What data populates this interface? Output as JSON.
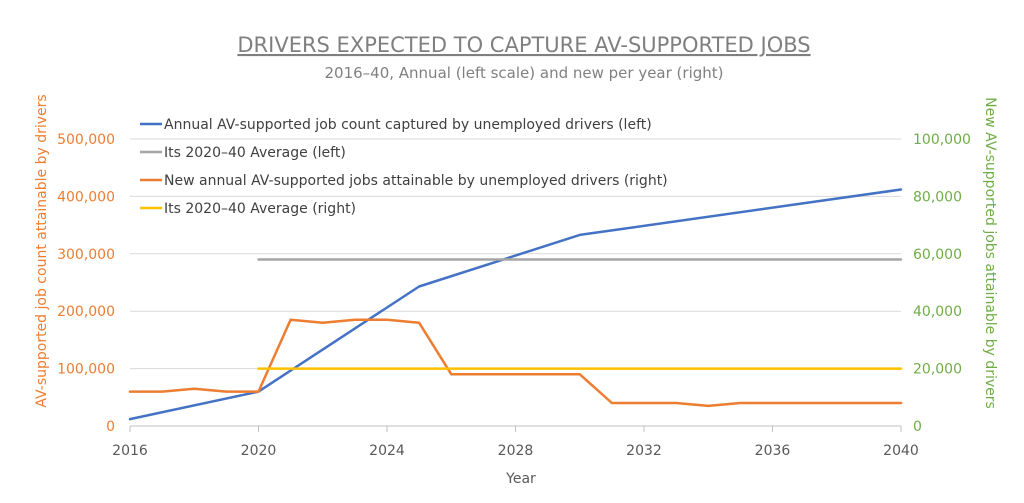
{
  "chart_data": {
    "type": "line",
    "title": "DRIVERS EXPECTED TO CAPTURE AV-SUPPORTED JOBS",
    "subtitle": "2016–40, Annual (left scale) and new per year (right)",
    "xlabel": "Year",
    "ylabel_left": "AV-supported job count attainable by drivers",
    "ylabel_right": "New AV-supported jobs attainable by drivers",
    "xlim": [
      2016,
      2040
    ],
    "ylim_left": [
      0,
      500000
    ],
    "ylim_right": [
      0,
      100000
    ],
    "x_ticks": [
      "2016",
      "2020",
      "2024",
      "2028",
      "2032",
      "2036",
      "2040"
    ],
    "y_ticks_left": [
      "0",
      "100,000",
      "200,000",
      "300,000",
      "400,000",
      "500,000"
    ],
    "y_ticks_right": [
      "0",
      "20,000",
      "40,000",
      "60,000",
      "80,000",
      "100,000"
    ],
    "grid": "horizontal",
    "legend_position": "top-left",
    "series": [
      {
        "name": "Annual AV-supported job count captured by unemployed drivers  (left)",
        "axis": "left",
        "color": "#4472c4",
        "x": [
          2016,
          2020,
          2025,
          2030,
          2040
        ],
        "y": [
          12000,
          60000,
          243000,
          333000,
          412000
        ]
      },
      {
        "name": "Its 2020–40 Average (left)",
        "axis": "left",
        "color": "#a5a5a5",
        "x": [
          2020,
          2040
        ],
        "y": [
          290000,
          290000
        ]
      },
      {
        "name": "New annual AV-supported jobs attainable by unemployed drivers (right)",
        "axis": "right",
        "color": "#ed7d31",
        "x": [
          2016,
          2017,
          2018,
          2019,
          2020,
          2021,
          2022,
          2023,
          2024,
          2025,
          2026,
          2027,
          2028,
          2029,
          2030,
          2031,
          2032,
          2033,
          2034,
          2035,
          2036,
          2037,
          2038,
          2039,
          2040
        ],
        "y": [
          12000,
          12000,
          13000,
          12000,
          12000,
          37000,
          36000,
          37000,
          37000,
          36000,
          18000,
          18000,
          18000,
          18000,
          18000,
          8000,
          8000,
          8000,
          7000,
          8000,
          8000,
          8000,
          8000,
          8000,
          8000
        ]
      },
      {
        "name": "Its 2020–40 Average (right)",
        "axis": "right",
        "color": "#ffc000",
        "x": [
          2020,
          2040
        ],
        "y": [
          20000,
          20000
        ]
      }
    ]
  }
}
